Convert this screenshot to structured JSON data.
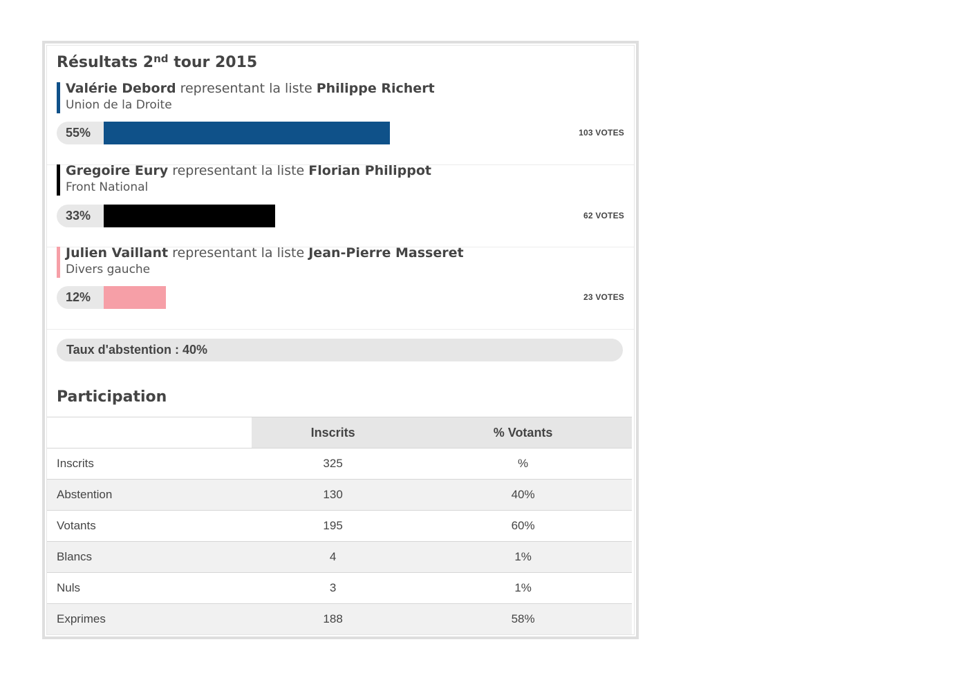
{
  "title": {
    "prefix": "Résultats 2",
    "sup": "nd",
    "suffix": " tour 2015"
  },
  "candidates": [
    {
      "name": "Valérie Debord",
      "rep_text": " representant la liste ",
      "list_leader": "Philippe Richert",
      "party": "Union de la Droite",
      "percent_label": "55%",
      "percent": 55,
      "votes_label": "103 VOTES",
      "color": "#0f5189"
    },
    {
      "name": "Gregoire Eury",
      "rep_text": " representant la liste ",
      "list_leader": "Florian Philippot",
      "party": "Front National",
      "percent_label": "33%",
      "percent": 33,
      "votes_label": "62 VOTES",
      "color": "#000000"
    },
    {
      "name": "Julien Vaillant",
      "rep_text": " representant la liste ",
      "list_leader": "Jean-Pierre Masseret",
      "party": "Divers gauche",
      "percent_label": "12%",
      "percent": 12,
      "votes_label": "23 VOTES",
      "color": "#f69fa7"
    }
  ],
  "abstention": "Taux d'abstention : 40%",
  "participation": {
    "title": "Participation",
    "headers": [
      "",
      "Inscrits",
      "% Votants"
    ],
    "rows": [
      [
        "Inscrits",
        "325",
        "%"
      ],
      [
        "Abstention",
        "130",
        "40%"
      ],
      [
        "Votants",
        "195",
        "60%"
      ],
      [
        "Blancs",
        "4",
        "1%"
      ],
      [
        "Nuls",
        "3",
        "1%"
      ],
      [
        "Exprimes",
        "188",
        "58%"
      ]
    ]
  }
}
